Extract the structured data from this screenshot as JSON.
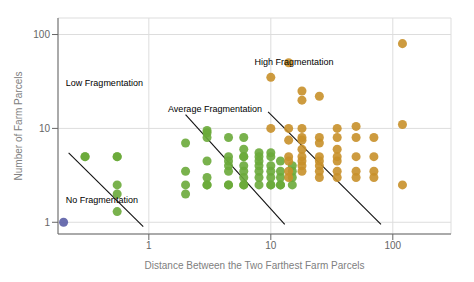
{
  "chart_data": {
    "type": "scatter",
    "title": "",
    "xlabel": "Distance Between the Two Farthest Farm Parcels",
    "ylabel": "Number of Farm Parcels",
    "log": true,
    "grid": true,
    "xlim": [
      0.18,
      300
    ],
    "ylim": [
      0.75,
      150
    ],
    "xticks": [
      1,
      10,
      100
    ],
    "yticks": [
      1,
      10,
      100
    ],
    "annotations": [
      "No Fragmentation",
      "Low Fragmentation",
      "Average Fragmentation",
      "High Fragmentation"
    ],
    "series": [
      {
        "type": "line",
        "color": "#111111",
        "x": [
          0.22,
          0.9
        ],
        "values": [
          5.5,
          0.9
        ]
      },
      {
        "type": "line",
        "color": "#111111",
        "x": [
          2.0,
          13.0
        ],
        "values": [
          14.0,
          0.95
        ]
      },
      {
        "type": "line",
        "color": "#111111",
        "x": [
          9.5,
          80.0
        ],
        "values": [
          15.0,
          0.95
        ]
      },
      {
        "type": "scatter",
        "color": "#5b5ea6",
        "x": [
          0.2
        ],
        "values": [
          1.0
        ]
      },
      {
        "type": "scatter",
        "color": "#6aaa3a",
        "x": [
          0.3,
          0.3,
          0.55,
          0.55,
          0.55,
          0.55,
          0.55,
          2.0,
          2.0,
          2.0,
          2.0,
          3.0,
          3.0,
          3.0,
          3.0,
          3.0,
          3.0,
          3.0,
          4.5,
          4.5,
          4.5,
          4.5,
          4.5,
          4.5,
          4.5,
          6.0,
          6.0,
          6.0,
          6.0,
          6.0,
          6.0,
          6.0,
          6.0,
          6.0,
          8.0,
          8.0,
          8.0,
          8.0,
          8.0,
          8.0,
          8.0,
          10.0,
          10.0,
          10.0,
          10.0,
          10.0,
          10.0,
          10.0,
          12.0,
          12.0,
          12.0,
          12.0,
          12.0,
          15.0,
          15.0,
          15.0,
          15.0
        ],
        "values": [
          5,
          5,
          5,
          5,
          2.5,
          2,
          1.3,
          7,
          3.5,
          2.5,
          2,
          9,
          9.5,
          8,
          4.5,
          3,
          2.5,
          2.5,
          8,
          5,
          4.5,
          4,
          3.5,
          2.5,
          2.5,
          8,
          6,
          5,
          5,
          4,
          3.5,
          3,
          2.5,
          2.5,
          5.5,
          5,
          4.5,
          4,
          3.5,
          3,
          2.5,
          5.5,
          5,
          4,
          3.5,
          3,
          2.5,
          2.5,
          4.5,
          3.5,
          3,
          2.5,
          2.5,
          4,
          3.5,
          3,
          2.5
        ]
      },
      {
        "type": "scatter",
        "color": "#c8902a",
        "x": [
          10.0,
          10.0,
          14.0,
          14.0,
          14.0,
          14.0,
          14.0,
          14.0,
          14.0,
          18.0,
          18.0,
          18.0,
          18.0,
          18.0,
          18.0,
          18.0,
          18.0,
          18.0,
          18.0,
          25.0,
          25.0,
          25.0,
          25.0,
          25.0,
          25.0,
          25.0,
          25.0,
          35.0,
          35.0,
          35.0,
          35.0,
          35.0,
          35.0,
          35.0,
          50.0,
          50.0,
          50.0,
          50.0,
          50.0,
          70.0,
          70.0,
          70.0,
          70.0,
          120.0,
          120.0,
          120.0
        ],
        "values": [
          35,
          10,
          50,
          10,
          7.5,
          5,
          4.5,
          3.5,
          3,
          25,
          20,
          10,
          8,
          7.5,
          6,
          5,
          4.5,
          4,
          3.5,
          22,
          8,
          7,
          5,
          4.5,
          4,
          3.5,
          3,
          10,
          8,
          6,
          5,
          4.5,
          3.5,
          3,
          10.5,
          8,
          5,
          3.5,
          3,
          8,
          5,
          3.5,
          3,
          80,
          11,
          2.5
        ]
      }
    ]
  }
}
